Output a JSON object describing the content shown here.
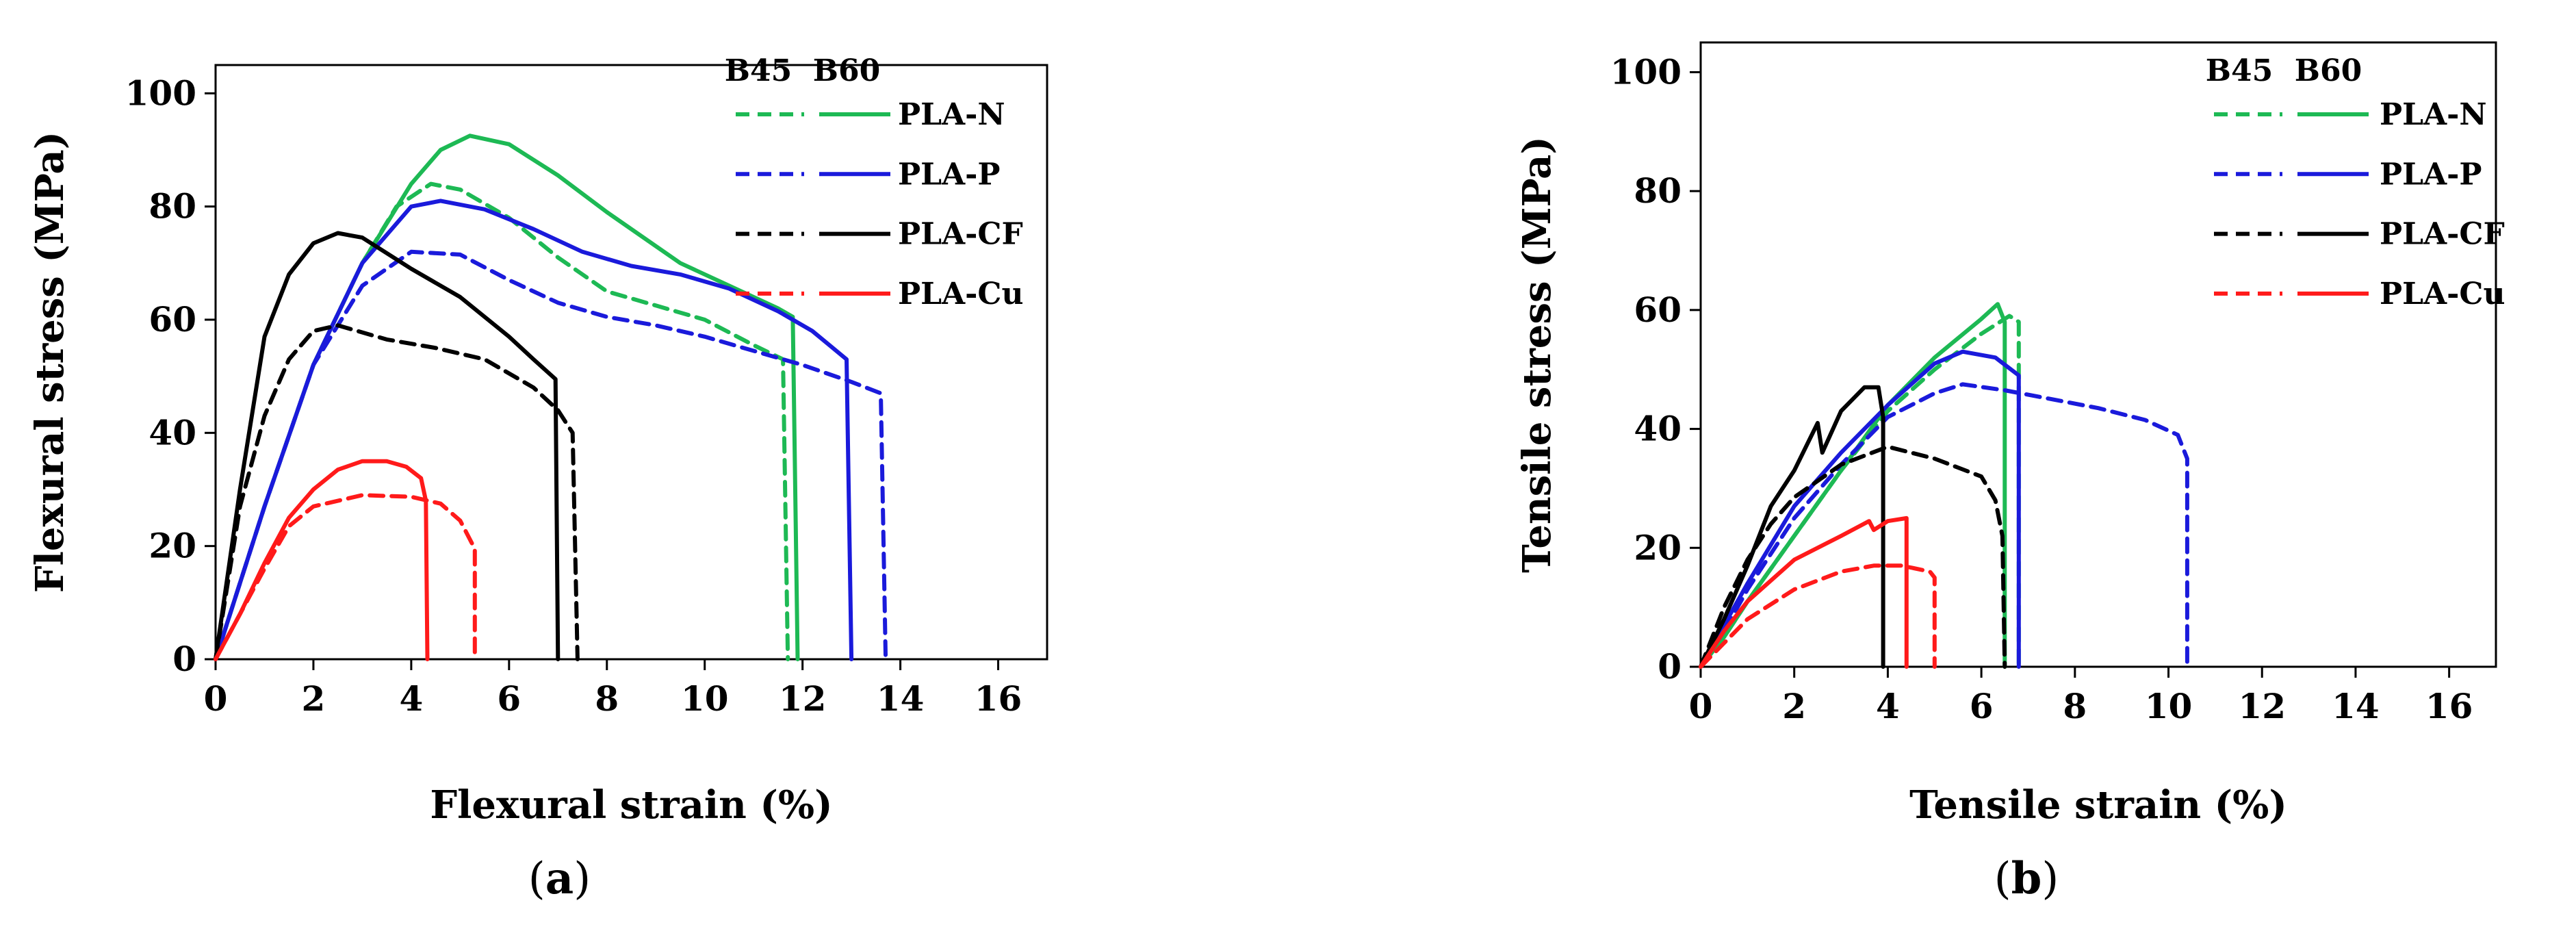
{
  "chart_data": [
    {
      "type": "line",
      "panel_label": "a",
      "xlabel": "Flexural strain (%)",
      "ylabel": "Flexural stress (MPa)",
      "xlim": [
        0,
        17
      ],
      "ylim": [
        0,
        105
      ],
      "xticks": [
        0,
        2,
        4,
        6,
        8,
        10,
        12,
        14,
        16
      ],
      "yticks": [
        0,
        20,
        40,
        60,
        80,
        100
      ],
      "legend_headers": [
        "B45",
        "B60"
      ],
      "legend_position": "top-right",
      "legend_entries": [
        "PLA-N",
        "PLA-P",
        "PLA-CF",
        "PLA-Cu"
      ],
      "series": [
        {
          "name": "PLA-N",
          "build": "B45",
          "style": "dashed",
          "color": "#1db954",
          "points": [
            [
              0,
              0
            ],
            [
              1,
              27
            ],
            [
              2,
              52
            ],
            [
              3,
              70
            ],
            [
              3.7,
              80
            ],
            [
              4.4,
              84
            ],
            [
              5,
              83
            ],
            [
              6,
              78
            ],
            [
              7,
              71
            ],
            [
              8,
              65
            ],
            [
              9,
              62.5
            ],
            [
              10,
              60
            ],
            [
              11,
              55.5
            ],
            [
              11.6,
              53
            ],
            [
              11.7,
              0
            ]
          ]
        },
        {
          "name": "PLA-N",
          "build": "B60",
          "style": "solid",
          "color": "#1db954",
          "points": [
            [
              0,
              0
            ],
            [
              1,
              27
            ],
            [
              2,
              52
            ],
            [
              3,
              70
            ],
            [
              4,
              84
            ],
            [
              4.6,
              90
            ],
            [
              5.2,
              92.5
            ],
            [
              6,
              91
            ],
            [
              7,
              85.5
            ],
            [
              8,
              79
            ],
            [
              9,
              73
            ],
            [
              9.5,
              70
            ],
            [
              10.5,
              66
            ],
            [
              11.5,
              62
            ],
            [
              11.8,
              60.5
            ],
            [
              11.9,
              0
            ]
          ]
        },
        {
          "name": "PLA-P",
          "build": "B45",
          "style": "dashed",
          "color": "#1a1adb",
          "points": [
            [
              0,
              0
            ],
            [
              1,
              27
            ],
            [
              2,
              52
            ],
            [
              3,
              66
            ],
            [
              4,
              72
            ],
            [
              5,
              71.5
            ],
            [
              6,
              67
            ],
            [
              7,
              63
            ],
            [
              8,
              60.5
            ],
            [
              9,
              59
            ],
            [
              10,
              57
            ],
            [
              11,
              54.5
            ],
            [
              12,
              52
            ],
            [
              13,
              49
            ],
            [
              13.6,
              47
            ],
            [
              13.7,
              0
            ]
          ]
        },
        {
          "name": "PLA-P",
          "build": "B60",
          "style": "solid",
          "color": "#1a1adb",
          "points": [
            [
              0,
              0
            ],
            [
              1,
              27
            ],
            [
              2,
              52
            ],
            [
              3,
              70
            ],
            [
              4,
              80
            ],
            [
              4.6,
              81
            ],
            [
              5.5,
              79.5
            ],
            [
              6.5,
              76
            ],
            [
              7.5,
              72
            ],
            [
              8.5,
              69.5
            ],
            [
              9.5,
              68
            ],
            [
              10.5,
              65.5
            ],
            [
              11.5,
              61.5
            ],
            [
              12.2,
              58
            ],
            [
              12.9,
              53
            ],
            [
              13,
              0
            ]
          ]
        },
        {
          "name": "PLA-CF",
          "build": "B45",
          "style": "dashed",
          "color": "#000000",
          "points": [
            [
              0,
              0
            ],
            [
              0.5,
              27
            ],
            [
              1,
              43
            ],
            [
              1.5,
              53
            ],
            [
              2,
              58
            ],
            [
              2.5,
              59
            ],
            [
              3.5,
              56.5
            ],
            [
              4.5,
              55
            ],
            [
              5.5,
              53
            ],
            [
              6.5,
              48
            ],
            [
              7,
              44
            ],
            [
              7.3,
              40
            ],
            [
              7.4,
              0
            ]
          ]
        },
        {
          "name": "PLA-CF",
          "build": "B60",
          "style": "solid",
          "color": "#000000",
          "points": [
            [
              0,
              0
            ],
            [
              0.5,
              30
            ],
            [
              1,
              57
            ],
            [
              1.5,
              68
            ],
            [
              2,
              73.5
            ],
            [
              2.5,
              75.3
            ],
            [
              3,
              74.5
            ],
            [
              4,
              69
            ],
            [
              5,
              64
            ],
            [
              6,
              57
            ],
            [
              6.5,
              53
            ],
            [
              6.95,
              49.5
            ],
            [
              7,
              0
            ]
          ]
        },
        {
          "name": "PLA-Cu",
          "build": "B45",
          "style": "dashed",
          "color": "#ff1a1a",
          "points": [
            [
              0,
              0
            ],
            [
              0.5,
              8
            ],
            [
              1,
              16
            ],
            [
              1.5,
              23.5
            ],
            [
              2,
              27
            ],
            [
              3,
              29
            ],
            [
              4,
              28.7
            ],
            [
              4.6,
              27.5
            ],
            [
              5,
              24.5
            ],
            [
              5.3,
              19.5
            ],
            [
              5.3,
              0
            ]
          ]
        },
        {
          "name": "PLA-Cu",
          "build": "B60",
          "style": "solid",
          "color": "#ff1a1a",
          "points": [
            [
              0,
              0
            ],
            [
              0.5,
              8
            ],
            [
              1,
              17
            ],
            [
              1.5,
              25
            ],
            [
              2,
              30
            ],
            [
              2.5,
              33.5
            ],
            [
              3,
              35
            ],
            [
              3.5,
              35
            ],
            [
              3.9,
              34
            ],
            [
              4.2,
              32
            ],
            [
              4.3,
              28
            ],
            [
              4.33,
              0
            ]
          ]
        }
      ]
    },
    {
      "type": "line",
      "panel_label": "b",
      "xlabel": "Tensile strain (%)",
      "ylabel": "Tensile stress (MPa)",
      "xlim": [
        0,
        17
      ],
      "ylim": [
        0,
        105
      ],
      "xticks": [
        0,
        2,
        4,
        6,
        8,
        10,
        12,
        14,
        16
      ],
      "yticks": [
        0,
        20,
        40,
        60,
        80,
        100
      ],
      "legend_headers": [
        "B45",
        "B60"
      ],
      "legend_position": "top-right",
      "legend_entries": [
        "PLA-N",
        "PLA-P",
        "PLA-CF",
        "PLA-Cu"
      ],
      "series": [
        {
          "name": "PLA-N",
          "build": "B45",
          "style": "dashed",
          "color": "#1db954",
          "points": [
            [
              0,
              0
            ],
            [
              0.5,
              5
            ],
            [
              1,
              11
            ],
            [
              2,
              22
            ],
            [
              3,
              33
            ],
            [
              4,
              43
            ],
            [
              5,
              50
            ],
            [
              6,
              56
            ],
            [
              6.6,
              59
            ],
            [
              6.8,
              58
            ],
            [
              6.8,
              0
            ]
          ]
        },
        {
          "name": "PLA-N",
          "build": "B60",
          "style": "solid",
          "color": "#1db954",
          "points": [
            [
              0,
              0
            ],
            [
              0.5,
              5
            ],
            [
              1,
              11
            ],
            [
              2,
              22
            ],
            [
              3,
              33
            ],
            [
              4,
              44
            ],
            [
              5,
              52
            ],
            [
              6,
              58.5
            ],
            [
              6.35,
              61
            ],
            [
              6.5,
              58
            ],
            [
              6.5,
              0
            ]
          ]
        },
        {
          "name": "PLA-P",
          "build": "B45",
          "style": "dashed",
          "color": "#1a1adb",
          "points": [
            [
              0,
              0
            ],
            [
              0.5,
              6
            ],
            [
              1,
              13
            ],
            [
              2,
              25
            ],
            [
              3,
              34
            ],
            [
              4,
              42
            ],
            [
              5,
              46
            ],
            [
              5.6,
              47.5
            ],
            [
              6.5,
              46.5
            ],
            [
              7.5,
              45
            ],
            [
              8.5,
              43.5
            ],
            [
              9.5,
              41.5
            ],
            [
              10.2,
              39
            ],
            [
              10.4,
              35
            ],
            [
              10.4,
              0
            ]
          ]
        },
        {
          "name": "PLA-P",
          "build": "B60",
          "style": "solid",
          "color": "#1a1adb",
          "points": [
            [
              0,
              0
            ],
            [
              0.5,
              7
            ],
            [
              1,
              14
            ],
            [
              2,
              27
            ],
            [
              3,
              36
            ],
            [
              4,
              44
            ],
            [
              5,
              51
            ],
            [
              5.6,
              53
            ],
            [
              6.3,
              52
            ],
            [
              6.8,
              49
            ],
            [
              6.8,
              0
            ]
          ]
        },
        {
          "name": "PLA-CF",
          "build": "B45",
          "style": "dashed",
          "color": "#000000",
          "points": [
            [
              0,
              0
            ],
            [
              0.5,
              10
            ],
            [
              1,
              18
            ],
            [
              1.5,
              24
            ],
            [
              2,
              28.5
            ],
            [
              3,
              34
            ],
            [
              4,
              37
            ],
            [
              5,
              35
            ],
            [
              5.5,
              33.5
            ],
            [
              6,
              32
            ],
            [
              6.3,
              28
            ],
            [
              6.45,
              22
            ],
            [
              6.5,
              0
            ]
          ]
        },
        {
          "name": "PLA-CF",
          "build": "B60",
          "style": "solid",
          "color": "#000000",
          "points": [
            [
              0,
              0
            ],
            [
              0.5,
              8
            ],
            [
              1,
              17
            ],
            [
              1.5,
              27
            ],
            [
              2,
              33
            ],
            [
              2.5,
              41
            ],
            [
              2.6,
              36
            ],
            [
              3,
              43
            ],
            [
              3.5,
              47
            ],
            [
              3.8,
              47
            ],
            [
              3.9,
              42
            ],
            [
              3.9,
              0
            ]
          ]
        },
        {
          "name": "PLA-Cu",
          "build": "B45",
          "style": "dashed",
          "color": "#ff1a1a",
          "points": [
            [
              0,
              0
            ],
            [
              0.5,
              4
            ],
            [
              1,
              8
            ],
            [
              2,
              13
            ],
            [
              3,
              16
            ],
            [
              3.7,
              17
            ],
            [
              4.3,
              17
            ],
            [
              4.9,
              16
            ],
            [
              5,
              15
            ],
            [
              5,
              0
            ]
          ]
        },
        {
          "name": "PLA-Cu",
          "build": "B60",
          "style": "solid",
          "color": "#ff1a1a",
          "points": [
            [
              0,
              0
            ],
            [
              0.5,
              6
            ],
            [
              1,
              11
            ],
            [
              2,
              18
            ],
            [
              3,
              22
            ],
            [
              3.6,
              24.5
            ],
            [
              3.7,
              23
            ],
            [
              4,
              24.5
            ],
            [
              4.4,
              25
            ],
            [
              4.4,
              0
            ]
          ]
        }
      ]
    }
  ]
}
